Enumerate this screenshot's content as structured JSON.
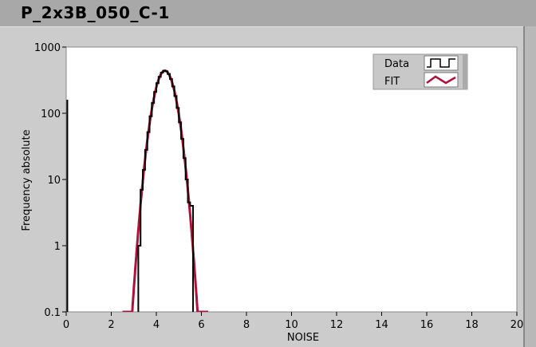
{
  "window": {
    "title": "P_2x3B_050_C-1"
  },
  "chart_data": {
    "type": "line",
    "title": "",
    "xlabel": "NOISE",
    "ylabel": "Frequency absolute",
    "xlim": [
      0,
      20
    ],
    "ylim": [
      0.1,
      1000
    ],
    "yscale": "log",
    "grid": false,
    "legend_position": "top-right",
    "x_ticks": [
      "0",
      "2",
      "4",
      "6",
      "8",
      "10",
      "12",
      "14",
      "16",
      "18",
      "20"
    ],
    "y_ticks": [
      "0.1",
      "1",
      "10",
      "100",
      "1000"
    ],
    "series": [
      {
        "name": "Data",
        "style": "step",
        "color": "#000000",
        "bin_edges": [
          3.2,
          3.3,
          3.4,
          3.5,
          3.6,
          3.7,
          3.8,
          3.9,
          4.0,
          4.1,
          4.2,
          4.3,
          4.4,
          4.5,
          4.6,
          4.7,
          4.8,
          4.9,
          5.0,
          5.1,
          5.2,
          5.3,
          5.4,
          5.5,
          5.63
        ],
        "values": [
          1,
          7,
          14,
          28,
          52,
          90,
          143,
          210,
          285,
          356,
          411,
          440,
          431,
          392,
          329,
          254,
          182,
          120,
          73,
          41,
          21,
          10,
          4.5,
          4
        ],
        "spike": {
          "x": 0.05,
          "value": 160
        }
      },
      {
        "name": "FIT",
        "style": "gaussian",
        "color": "#b0103a",
        "amplitude": 440,
        "mean": 4.38,
        "sigma": 0.354
      }
    ]
  }
}
